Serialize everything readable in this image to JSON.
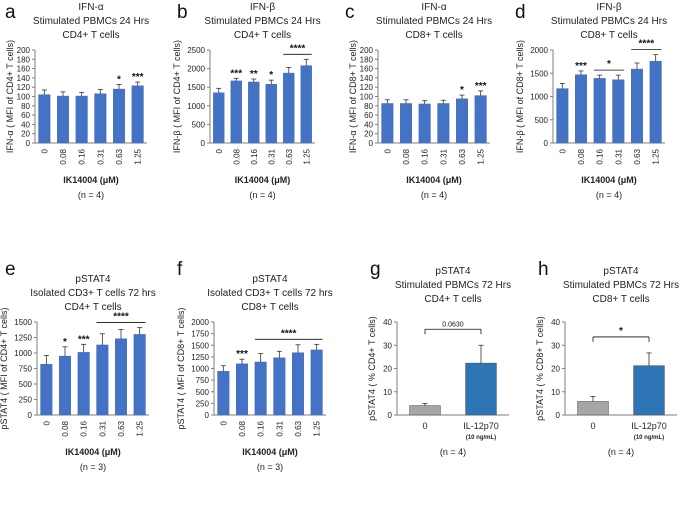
{
  "colors": {
    "bar": "#4472C4",
    "bar_edge": "#3A64B0",
    "grey_bar": "#A6A6A6",
    "blue_bar": "#2E75B6",
    "axis": "#7F7F7F",
    "text": "#222222"
  },
  "chart_data": [
    {
      "panel": "a",
      "type": "bar",
      "title_lines": [
        "IFN-α",
        "Stimulated PBMCs 24 Hrs",
        "CD4+ T cells"
      ],
      "ylabel": "IFN-α ( MFI of CD4+ T cells)",
      "xlabel": "IK14004 (μM)",
      "n_label": "(n = 4)",
      "categories": [
        "0",
        "0.08",
        "0.16",
        "0.31",
        "0.63",
        "1.25"
      ],
      "values": [
        104,
        101,
        101,
        106,
        116,
        123
      ],
      "errors": [
        10,
        9,
        8,
        9,
        10,
        8
      ],
      "ylim": [
        0,
        200
      ],
      "yticks": [
        "0",
        "20",
        "40",
        "60",
        "80",
        "100",
        "120",
        "140",
        "160",
        "180",
        "200"
      ],
      "significance": [
        {
          "label": "*",
          "bar": 4
        },
        {
          "label": "***",
          "bar": 5
        }
      ]
    },
    {
      "panel": "b",
      "type": "bar",
      "title_lines": [
        "IFN-β",
        "Stimulated PBMCs 24 Hrs",
        "CD4+ T cells"
      ],
      "ylabel": "IFN-β ( MFI of CD4+ T cells)",
      "xlabel": "IK14004 (μM)",
      "n_label": "(n = 4)",
      "categories": [
        "0",
        "0.08",
        "0.16",
        "0.31",
        "0.63",
        "1.25"
      ],
      "values": [
        1350,
        1670,
        1640,
        1580,
        1880,
        2080
      ],
      "errors": [
        120,
        70,
        80,
        110,
        150,
        170
      ],
      "ylim": [
        0,
        2500
      ],
      "yticks": [
        "0",
        "500",
        "1000",
        "1500",
        "2000",
        "2500"
      ],
      "significance": [
        {
          "label": "***",
          "bar": 1
        },
        {
          "label": "**",
          "bar": 2
        },
        {
          "label": "*",
          "bar": 3
        },
        {
          "label": "****",
          "from": 4,
          "to": 5
        }
      ]
    },
    {
      "panel": "c",
      "type": "bar",
      "title_lines": [
        "IFN-α",
        "Stimulated PBMCs 24 Hrs",
        "CD8+ T cells"
      ],
      "ylabel": "IFN-α ( MFI of CD8+ T cells)",
      "xlabel": "IK14004 (μM)",
      "n_label": "(n = 4)",
      "categories": [
        "0",
        "0.08",
        "0.16",
        "0.31",
        "0.63",
        "1.25"
      ],
      "values": [
        85,
        85,
        84,
        85,
        95,
        102
      ],
      "errors": [
        8,
        8,
        7,
        7,
        8,
        10
      ],
      "ylim": [
        0,
        200
      ],
      "yticks": [
        "0",
        "20",
        "40",
        "60",
        "80",
        "100",
        "120",
        "140",
        "160",
        "180",
        "200"
      ],
      "significance": [
        {
          "label": "*",
          "bar": 4
        },
        {
          "label": "***",
          "bar": 5
        }
      ]
    },
    {
      "panel": "d",
      "type": "bar",
      "title_lines": [
        "IFN-β",
        "Stimulated PBMCs 24 Hrs",
        "CD8+ T cells"
      ],
      "ylabel": "IFN-β ( MFI of CD8+ T cells)",
      "xlabel": "IK14004 (μM)",
      "n_label": "(n = 4)",
      "categories": [
        "0",
        "0.08",
        "0.16",
        "0.31",
        "0.63",
        "1.25"
      ],
      "values": [
        1170,
        1470,
        1390,
        1360,
        1590,
        1760
      ],
      "errors": [
        110,
        80,
        70,
        100,
        130,
        140
      ],
      "ylim": [
        0,
        2000
      ],
      "yticks": [
        "0",
        "500",
        "1000",
        "1500",
        "2000"
      ],
      "significance": [
        {
          "label": "***",
          "bar": 1
        },
        {
          "label": "*",
          "from": 2,
          "to": 3
        },
        {
          "label": "****",
          "from": 4,
          "to": 5
        }
      ]
    },
    {
      "panel": "e",
      "type": "bar",
      "title_lines": [
        "pSTAT4",
        "Isolated CD3+ T cells 72 hrs",
        "CD4+ T cells"
      ],
      "ylabel": "pSTAT4 ( MFI of CD4+ T cells)",
      "xlabel": "IK14004 (μM)",
      "n_label": "(n = 3)",
      "categories": [
        "0",
        "0.08",
        "0.16",
        "0.31",
        "0.63",
        "1.25"
      ],
      "values": [
        820,
        950,
        1010,
        1130,
        1230,
        1300
      ],
      "errors": [
        140,
        150,
        130,
        180,
        150,
        110
      ],
      "ylim": [
        0,
        1500
      ],
      "yticks": [
        "0",
        "250",
        "500",
        "750",
        "1000",
        "1250",
        "1500"
      ],
      "significance": [
        {
          "label": "*",
          "bar": 1
        },
        {
          "label": "***",
          "bar": 2
        },
        {
          "label": "****",
          "from": 3,
          "to": 5
        }
      ]
    },
    {
      "panel": "f",
      "type": "bar",
      "title_lines": [
        "pSTAT4",
        "Isolated CD3+ T cells 72 hrs",
        "CD8+ T cells"
      ],
      "ylabel": "pSTAT4 ( MFI of CD8+ T cells)",
      "xlabel": "IK14004 (μM)",
      "n_label": "(n = 3)",
      "categories": [
        "0",
        "0.08",
        "0.16",
        "0.31",
        "0.63",
        "1.25"
      ],
      "values": [
        940,
        1100,
        1140,
        1230,
        1340,
        1400
      ],
      "errors": [
        120,
        100,
        180,
        140,
        170,
        120
      ],
      "ylim": [
        0,
        2000
      ],
      "yticks": [
        "0",
        "250",
        "500",
        "750",
        "1000",
        "1250",
        "1500",
        "1750",
        "2000"
      ],
      "significance": [
        {
          "label": "***",
          "bar": 1
        },
        {
          "label": "****",
          "from": 2,
          "to": 5
        }
      ]
    },
    {
      "panel": "g",
      "type": "bar",
      "title_lines": [
        "pSTAT4",
        "Stimulated PBMCs 72 Hrs",
        "CD4+ T cells"
      ],
      "ylabel": "pSTAT4 ( % CD4+ T cells)",
      "xlabel": "",
      "n_label": "(n = 4)",
      "categories": [
        "0",
        "IL-12p70"
      ],
      "sublabels": [
        "",
        "(10 ng/mL)"
      ],
      "values": [
        4.0,
        22.3
      ],
      "errors": [
        1.0,
        7.7
      ],
      "bar_colors": [
        "#A6A6A6",
        "#2E75B6"
      ],
      "ylim": [
        0,
        40
      ],
      "yticks": [
        "0",
        "10",
        "20",
        "30",
        "40"
      ],
      "significance": [
        {
          "label": "0.0630",
          "from": 0,
          "to": 1,
          "small": true
        }
      ]
    },
    {
      "panel": "h",
      "type": "bar",
      "title_lines": [
        "pSTAT4",
        "Stimulated PBMCs 72 Hrs",
        "CD8+ T cells"
      ],
      "ylabel": "pSTAT4 ( % CD8+ T cells)",
      "xlabel": "",
      "n_label": "(n = 4)",
      "categories": [
        "0",
        "IL-12p70"
      ],
      "sublabels": [
        "",
        "(10 ng/mL)"
      ],
      "values": [
        5.8,
        21.2
      ],
      "errors": [
        2.2,
        5.5
      ],
      "bar_colors": [
        "#A6A6A6",
        "#2E75B6"
      ],
      "ylim": [
        0,
        40
      ],
      "yticks": [
        "0",
        "10",
        "20",
        "30",
        "40"
      ],
      "significance": [
        {
          "label": "*",
          "from": 0,
          "to": 1
        }
      ]
    }
  ]
}
